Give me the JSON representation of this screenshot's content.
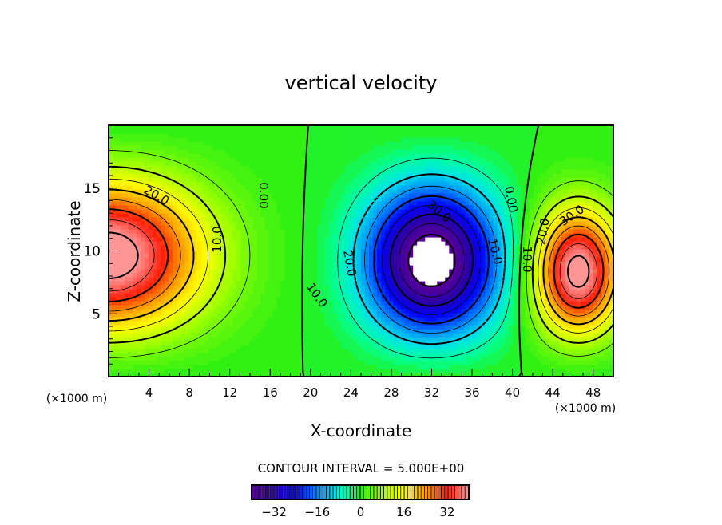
{
  "chart_data": {
    "type": "heatmap",
    "subtype": "filled-contour",
    "title": "vertical velocity",
    "xlabel": "X-coordinate",
    "ylabel": "Z-coordinate",
    "x_unit_label": "(×1000 m)",
    "y_unit_label": "(×1000 m)",
    "xlim": [
      0,
      50
    ],
    "ylim": [
      0,
      20
    ],
    "x_ticks": [
      "4",
      "8",
      "12",
      "16",
      "20",
      "24",
      "28",
      "32",
      "36",
      "40",
      "44",
      "48"
    ],
    "x_tick_values": [
      4,
      8,
      12,
      16,
      20,
      24,
      28,
      32,
      36,
      40,
      44,
      48
    ],
    "y_ticks": [
      "5",
      "10",
      "15"
    ],
    "y_tick_values": [
      5,
      10,
      15
    ],
    "contour_interval_text": "CONTOUR INTERVAL = 5.000E+00",
    "contour_interval": 5,
    "contour_labels": [
      "20.0",
      "10.0",
      "0.00",
      "10.0",
      "20.0",
      "30.0",
      "10.0",
      "0.00",
      "10.0",
      "20.0",
      "30.0"
    ],
    "features": [
      {
        "name": "updraft-left",
        "x": 0,
        "z": 9.5,
        "peak": 40
      },
      {
        "name": "downdraft-center",
        "x": 32,
        "z": 9,
        "peak": -42
      },
      {
        "name": "updraft-right",
        "x": 46.5,
        "z": 8,
        "peak": 40
      }
    ],
    "colorbar": {
      "range": [
        -40,
        40
      ],
      "tick_labels": [
        "−32",
        "−16",
        "0",
        "16",
        "32"
      ],
      "tick_values": [
        -32,
        -16,
        0,
        16,
        32
      ]
    }
  }
}
